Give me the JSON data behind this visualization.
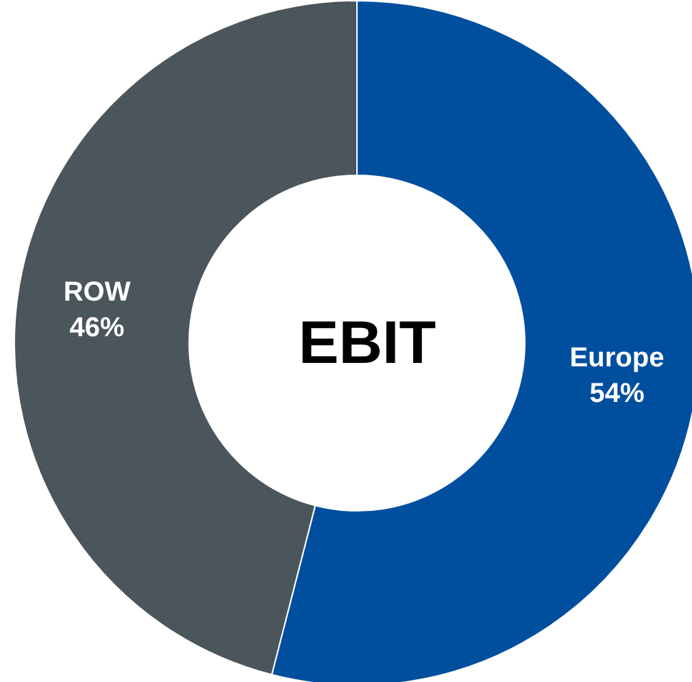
{
  "chart_data": {
    "type": "donut",
    "title": "EBIT",
    "categories": [
      "Europe",
      "ROW"
    ],
    "values": [
      54,
      46
    ],
    "colors": [
      "#004f9f",
      "#4a555c"
    ],
    "value_labels": [
      "54%",
      "46%"
    ]
  }
}
